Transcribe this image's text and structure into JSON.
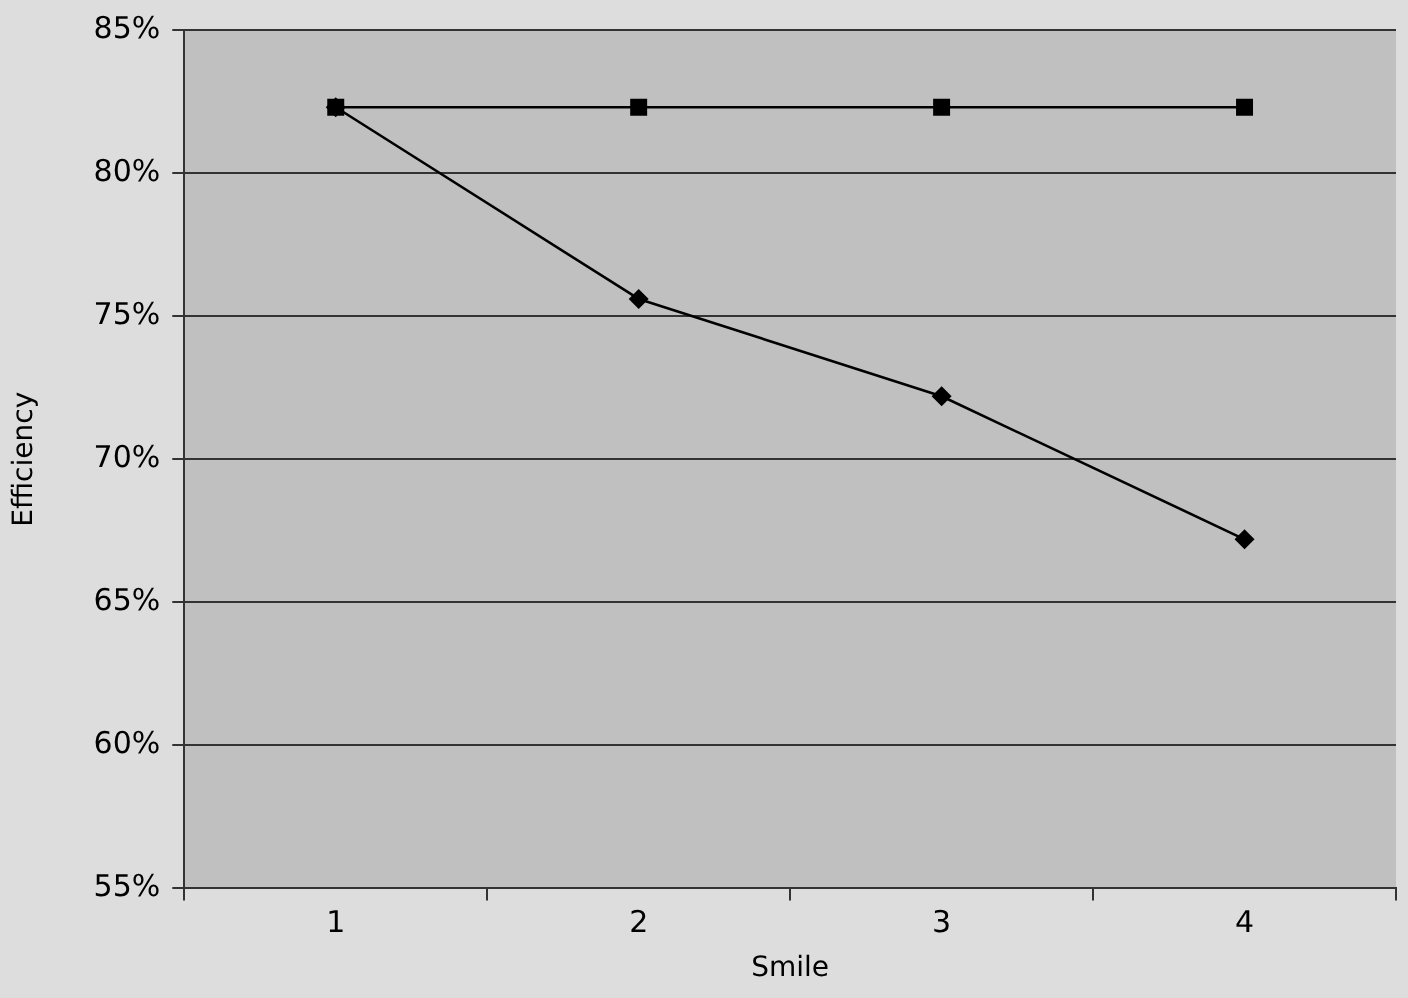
{
  "chart_data": {
    "type": "line",
    "xlabel": "Smile",
    "ylabel": "Efficiency",
    "categories": [
      "1",
      "2",
      "3",
      "4"
    ],
    "series": [
      {
        "color": "#000000",
        "marker": "square",
        "values": [
          82.3,
          82.3,
          82.3,
          82.3
        ]
      },
      {
        "color": "#000000",
        "marker": "diamond",
        "values": [
          82.3,
          75.6,
          72.2,
          67.2
        ]
      }
    ],
    "ylim": [
      55,
      85
    ],
    "yticks": [
      {
        "value": 55,
        "label": "55%"
      },
      {
        "value": 60,
        "label": "60%"
      },
      {
        "value": 65,
        "label": "65%"
      },
      {
        "value": 70,
        "label": "70%"
      },
      {
        "value": 75,
        "label": "75%"
      },
      {
        "value": 80,
        "label": "80%"
      },
      {
        "value": 85,
        "label": "85%"
      }
    ],
    "grid": "y",
    "legend": false,
    "line_style": "solid"
  }
}
